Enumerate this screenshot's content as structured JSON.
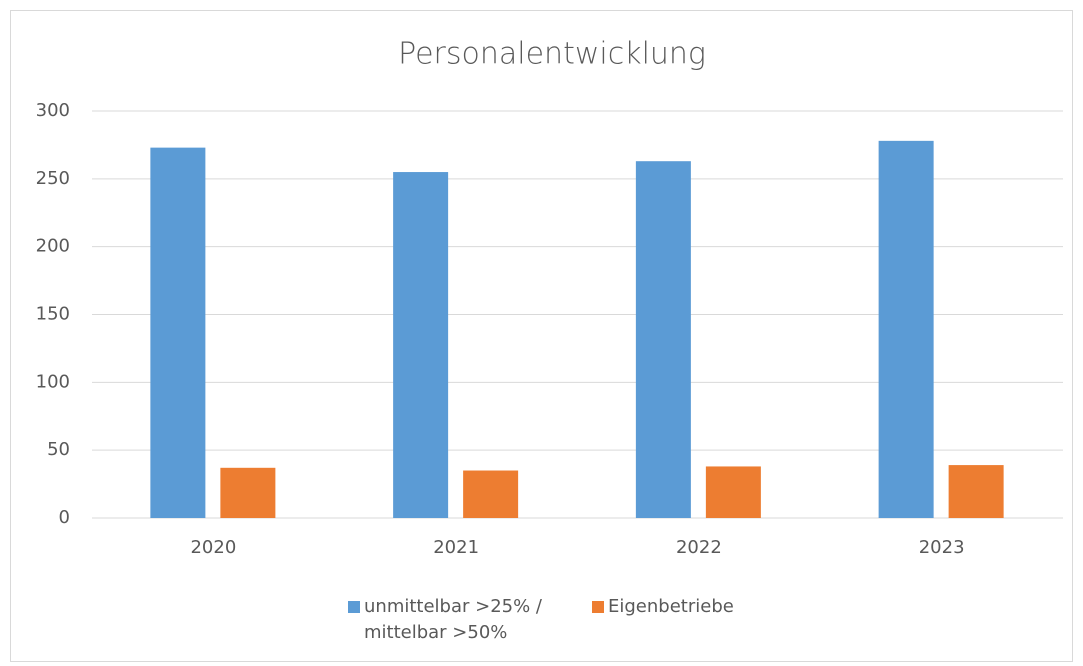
{
  "chart_data": {
    "type": "bar",
    "title": "Personalentwicklung",
    "categories": [
      "2020",
      "2021",
      "2022",
      "2023"
    ],
    "series": [
      {
        "name": "unmittelbar >25% / mittelbar >50%",
        "color": "#5b9bd5",
        "values": [
          273,
          255,
          263,
          278
        ]
      },
      {
        "name": "Eigenbetriebe",
        "color": "#ed7d31",
        "values": [
          37,
          35,
          38,
          39
        ]
      }
    ],
    "ylim": [
      0,
      300
    ],
    "yticks": [
      0,
      50,
      100,
      150,
      200,
      250,
      300
    ],
    "grid": true,
    "legend": "bottom"
  }
}
